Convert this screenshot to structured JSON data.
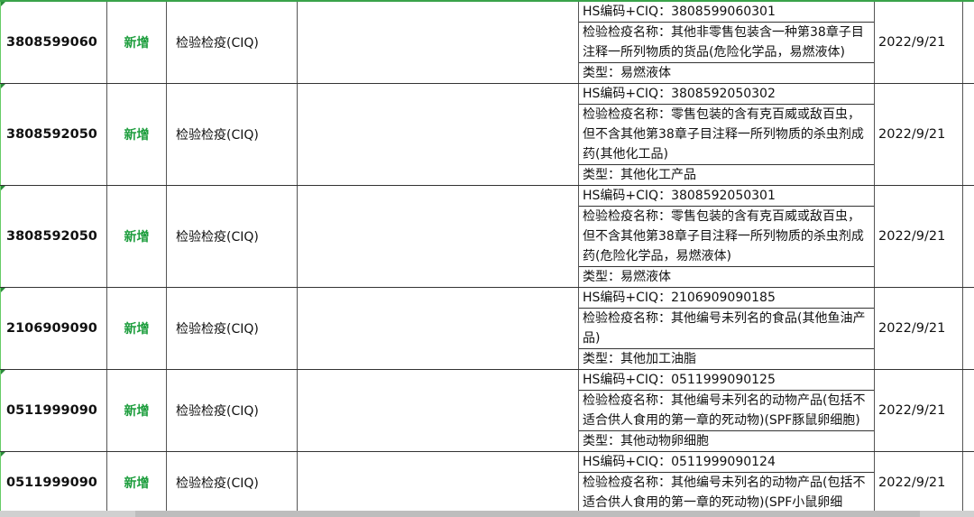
{
  "rows": [
    {
      "code": "3808599060",
      "status": "新增",
      "category": "检验检疫(CIQ)",
      "hs": "HS编码+CIQ：3808599060301",
      "name": "检验检疫名称：其他非零售包装含一种第38章子目注释一所列物质的货品(危险化学品，易燃液体)",
      "type": "类型：易燃液体",
      "date": "2022/9/21"
    },
    {
      "code": "3808592050",
      "status": "新增",
      "category": "检验检疫(CIQ)",
      "hs": "HS编码+CIQ：3808592050302",
      "name": "检验检疫名称：零售包装的含有克百威或敌百虫，但不含其他第38章子目注释一所列物质的杀虫剂成药(其他化工品)",
      "type": "类型：其他化工产品",
      "date": "2022/9/21"
    },
    {
      "code": "3808592050",
      "status": "新增",
      "category": "检验检疫(CIQ)",
      "hs": "HS编码+CIQ：3808592050301",
      "name": "检验检疫名称：零售包装的含有克百威或敌百虫，但不含其他第38章子目注释一所列物质的杀虫剂成药(危险化学品，易燃液体)",
      "type": "类型：易燃液体",
      "date": "2022/9/21"
    },
    {
      "code": "2106909090",
      "status": "新增",
      "category": "检验检疫(CIQ)",
      "hs": "HS编码+CIQ：2106909090185",
      "name": "检验检疫名称：其他编号未列名的食品(其他鱼油产品)",
      "type": "类型：其他加工油脂",
      "date": "2022/9/21"
    },
    {
      "code": "0511999090",
      "status": "新增",
      "category": "检验检疫(CIQ)",
      "hs": "HS编码+CIQ：0511999090125",
      "name": "检验检疫名称：其他编号未列名的动物产品(包括不适合供人食用的第一章的死动物)(SPF豚鼠卵细胞)",
      "type": "类型：其他动物卵细胞",
      "date": "2022/9/21"
    },
    {
      "code": "0511999090",
      "status": "新增",
      "category": "检验检疫(CIQ)",
      "hs": "HS编码+CIQ：0511999090124",
      "name": "检验检疫名称：其他编号未列名的动物产品(包括不适合供人食用的第一章的死动物)(SPF小鼠卵细",
      "type": "",
      "date": "2022/9/21"
    }
  ],
  "colors": {
    "status": "#1e9e3e",
    "header_border": "#3aa34a"
  }
}
